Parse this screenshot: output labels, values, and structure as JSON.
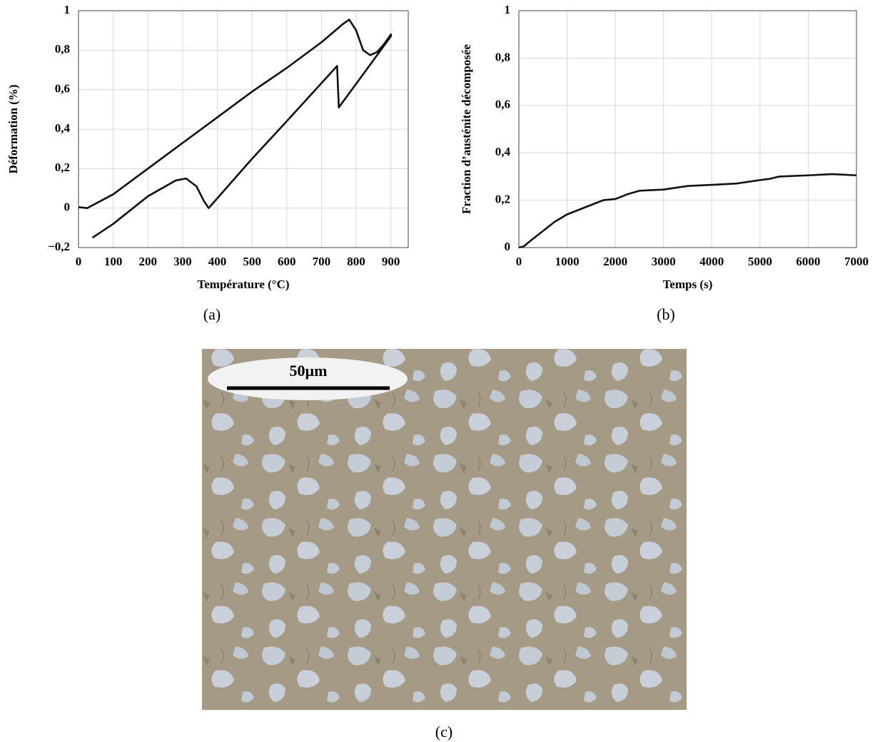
{
  "chart_data": [
    {
      "type": "line",
      "xlabel": "Température (°C)",
      "ylabel": "Déformation (%)",
      "caption": "(a)",
      "color": "#111111",
      "grid": true,
      "xlim": [
        0,
        950
      ],
      "xticks": [
        0,
        100,
        200,
        300,
        400,
        500,
        600,
        700,
        800,
        900
      ],
      "ylim": [
        -0.2,
        1
      ],
      "yticks": [
        {
          "value": -0.2,
          "label": "−0,2"
        },
        0,
        {
          "value": 0.2,
          "label": "0,2"
        },
        {
          "value": 0.4,
          "label": "0,4"
        },
        {
          "value": 0.6,
          "label": "0,6"
        },
        {
          "value": 0.8,
          "label": "0,8"
        },
        1
      ],
      "x": [
        0,
        25,
        100,
        200,
        300,
        400,
        500,
        600,
        700,
        760,
        780,
        800,
        820,
        840,
        860,
        880,
        900,
        900,
        850,
        800,
        750,
        745,
        600,
        500,
        400,
        375,
        360,
        340,
        310,
        280,
        200,
        100,
        40
      ],
      "values": [
        0.005,
        0,
        0.07,
        0.2,
        0.33,
        0.46,
        0.59,
        0.71,
        0.84,
        0.93,
        0.955,
        0.9,
        0.8,
        0.775,
        0.79,
        0.83,
        0.88,
        0.87,
        0.75,
        0.63,
        0.51,
        0.72,
        0.44,
        0.25,
        0.05,
        0,
        0.04,
        0.11,
        0.15,
        0.14,
        0.06,
        -0.08,
        -0.15
      ]
    },
    {
      "type": "line",
      "xlabel": "Temps (s)",
      "ylabel": "Fraction d’austénite décomposée",
      "caption": "(b)",
      "color": "#111111",
      "grid": true,
      "xlim": [
        0,
        7000
      ],
      "xticks": [
        0,
        1000,
        2000,
        3000,
        4000,
        5000,
        6000,
        7000
      ],
      "ylim": [
        0,
        1
      ],
      "yticks": [
        0,
        {
          "value": 0.2,
          "label": "0,2"
        },
        {
          "value": 0.4,
          "label": "0,4"
        },
        {
          "value": 0.6,
          "label": "0,6"
        },
        {
          "value": 0.8,
          "label": "0,8"
        },
        1
      ],
      "x": [
        0,
        100,
        250,
        500,
        750,
        1000,
        1250,
        1500,
        1750,
        2000,
        2250,
        2500,
        3000,
        3500,
        4000,
        4500,
        5000,
        5200,
        5400,
        6000,
        6500,
        7000
      ],
      "values": [
        0,
        0.005,
        0.03,
        0.07,
        0.11,
        0.14,
        0.16,
        0.18,
        0.2,
        0.205,
        0.225,
        0.24,
        0.245,
        0.26,
        0.265,
        0.27,
        0.285,
        0.29,
        0.3,
        0.305,
        0.31,
        0.305
      ]
    }
  ],
  "micrograph": {
    "scale_label": "50µm",
    "caption": "(c)"
  }
}
